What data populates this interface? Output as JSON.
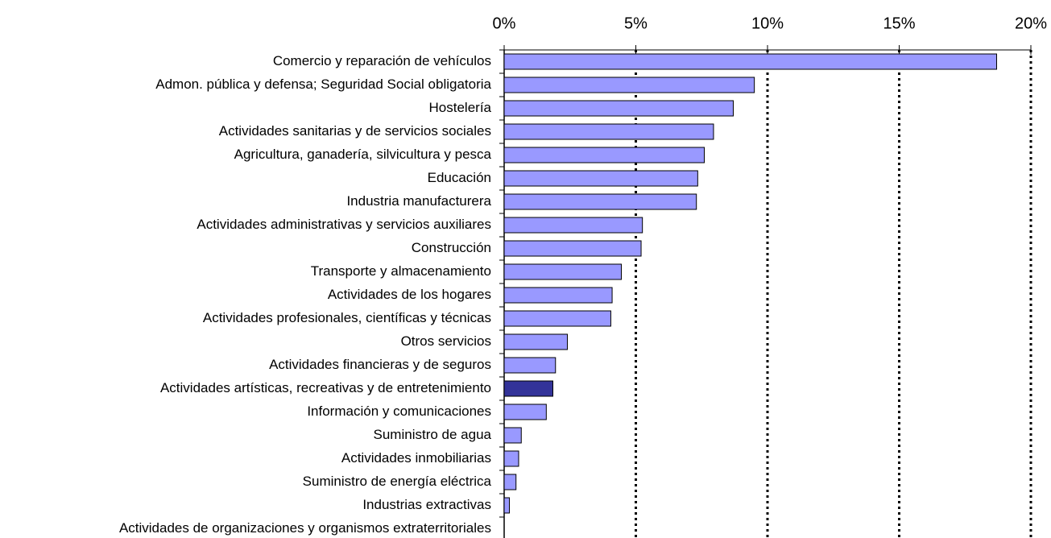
{
  "chart_data": {
    "type": "bar",
    "orientation": "horizontal",
    "categories": [
      "Comercio y reparación de vehículos",
      "Admon. pública y defensa; Seguridad Social obligatoria",
      "Hostelería",
      "Actividades sanitarias y de servicios sociales",
      "Agricultura, ganadería, silvicultura y pesca",
      "Educación",
      "Industria manufacturera",
      "Actividades administrativas y servicios auxiliares",
      "Construcción",
      "Transporte y almacenamiento",
      "Actividades de los hogares",
      "Actividades profesionales, científicas y técnicas",
      "Otros servicios",
      "Actividades financieras y de seguros",
      "Actividades artísticas, recreativas y de entretenimiento",
      "Información y comunicaciones",
      "Suministro de agua",
      "Actividades inmobiliarias",
      "Suministro de energía eléctrica",
      "Industrias extractivas",
      "Actividades de organizaciones y organismos extraterritoriales"
    ],
    "values": [
      18.7,
      9.5,
      8.7,
      7.95,
      7.6,
      7.35,
      7.3,
      5.25,
      5.2,
      4.45,
      4.1,
      4.05,
      2.4,
      1.95,
      1.85,
      1.6,
      0.65,
      0.55,
      0.45,
      0.2,
      0
    ],
    "colors": [
      "#9999ff",
      "#9999ff",
      "#9999ff",
      "#9999ff",
      "#9999ff",
      "#9999ff",
      "#9999ff",
      "#9999ff",
      "#9999ff",
      "#9999ff",
      "#9999ff",
      "#9999ff",
      "#9999ff",
      "#9999ff",
      "#333399",
      "#9999ff",
      "#9999ff",
      "#9999ff",
      "#9999ff",
      "#9999ff",
      "#9999ff"
    ],
    "xlim": [
      0,
      20
    ],
    "xticks": [
      {
        "value": 0,
        "label": "0%"
      },
      {
        "value": 5,
        "label": "5%"
      },
      {
        "value": 10,
        "label": "10%"
      },
      {
        "value": 15,
        "label": "15%"
      },
      {
        "value": 20,
        "label": "20%"
      }
    ],
    "grid": true
  }
}
